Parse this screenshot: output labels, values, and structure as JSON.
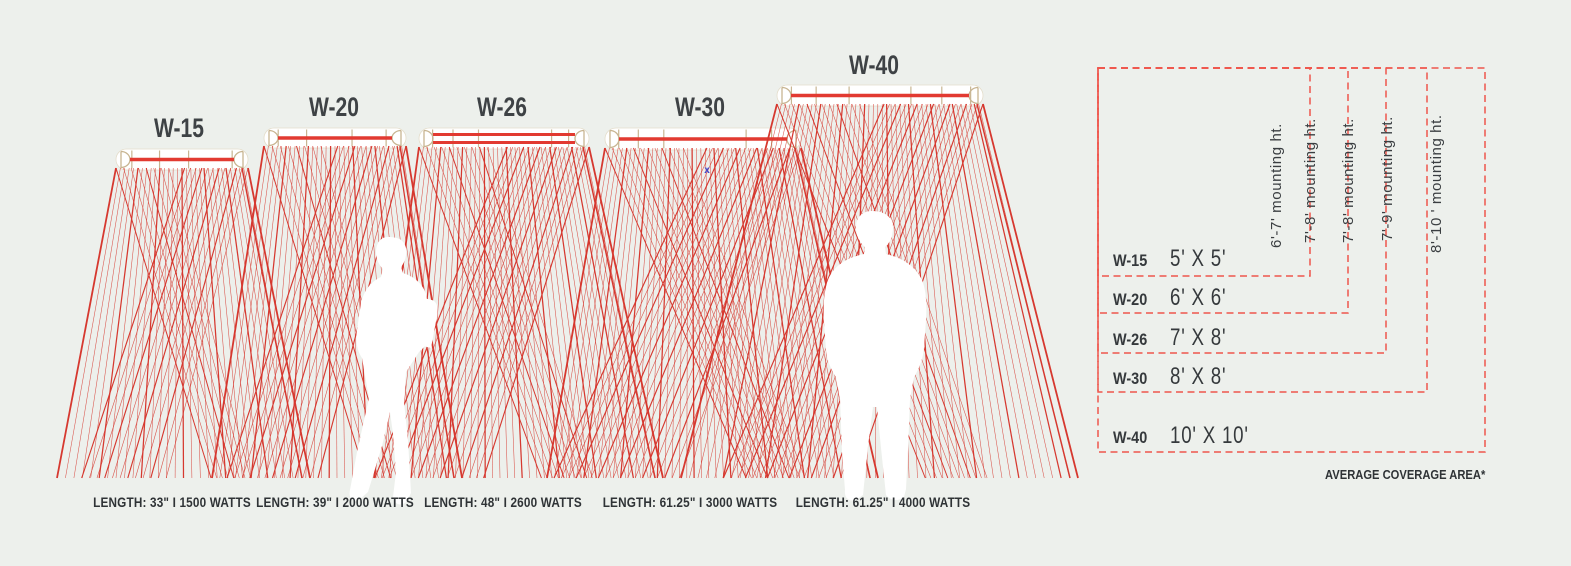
{
  "page": {
    "background": "#edf0ec",
    "annotation_marker": "x"
  },
  "colors": {
    "ray_red": "#d6382f",
    "element_red": "#e23a31",
    "tan": "#c8b592",
    "dashed_red": "#ef564c",
    "text_dark": "#3a3e41",
    "silhouette_white": "#ffffff",
    "marker_blue": "#4046c8"
  },
  "table": {
    "footnote": "AVERAGE COVERAGE AREA*"
  },
  "models": [
    {
      "name": "W-15",
      "spec": "LENGTH: 33\" I 1500 WATTS",
      "coverage": "5' X 5'",
      "mounting": "6'-7' mounting ht."
    },
    {
      "name": "W-20",
      "spec": "LENGTH: 39\" I 2000 WATTS",
      "coverage": "6' X 6'",
      "mounting": "7'-8' mounting ht."
    },
    {
      "name": "W-26",
      "spec": "LENGTH: 48\" I 2600 WATTS",
      "coverage": "7' X 8'",
      "mounting": "7'-8' mounting ht."
    },
    {
      "name": "W-30",
      "spec": "LENGTH: 61.25\" I 3000 WATTS",
      "coverage": "8' X 8'",
      "mounting": "7'-9' mounting ht."
    },
    {
      "name": "W-40",
      "spec": "LENGTH: 61.25\" I 4000 WATTS",
      "coverage": "10' X 10'",
      "mounting": "8'-10 ' mounting ht."
    }
  ]
}
